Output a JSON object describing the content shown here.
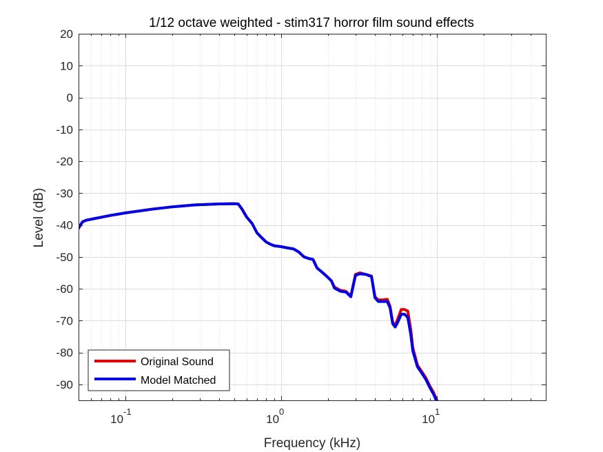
{
  "chart_data": {
    "type": "line",
    "title": "1/12 octave weighted - stim317 horror film sound effects",
    "xlabel": "Frequency (kHz)",
    "ylabel": "Level (dB)",
    "x_scale": "log",
    "xlim": [
      0.05,
      50
    ],
    "ylim": [
      -95,
      20
    ],
    "xticks": [
      {
        "value": 0.1,
        "base": "10",
        "exp": "-1"
      },
      {
        "value": 1,
        "base": "10",
        "exp": "0"
      },
      {
        "value": 10,
        "base": "10",
        "exp": "1"
      }
    ],
    "yticks": [
      20,
      10,
      0,
      -10,
      -20,
      -30,
      -40,
      -50,
      -60,
      -70,
      -80,
      -90
    ],
    "grid": true,
    "minor_grid": true,
    "legend_position": "bottom-left",
    "series": [
      {
        "name": "Original Sound",
        "color": "#e00000",
        "x": [
          0.05,
          0.053,
          0.056,
          0.06,
          0.08,
          0.1,
          0.15,
          0.2,
          0.28,
          0.4,
          0.5,
          0.53,
          0.56,
          0.6,
          0.65,
          0.7,
          0.75,
          0.8,
          0.85,
          0.9,
          1.0,
          1.1,
          1.2,
          1.3,
          1.4,
          1.5,
          1.6,
          1.7,
          1.8,
          1.9,
          2.0,
          2.1,
          2.2,
          2.4,
          2.6,
          2.8,
          3.0,
          3.2,
          3.5,
          3.8,
          4.0,
          4.2,
          4.5,
          4.8,
          5.0,
          5.2,
          5.4,
          5.6,
          5.9,
          6.2,
          6.5,
          6.8,
          7.0,
          7.5,
          8.0,
          8.5,
          9.0,
          9.5,
          10.0,
          10.5
        ],
        "y": [
          -41,
          -39,
          -38.5,
          -38.2,
          -37,
          -36.2,
          -35,
          -34.3,
          -33.7,
          -33.4,
          -33.3,
          -33.4,
          -35,
          -37.5,
          -39.5,
          -42.5,
          -44,
          -45.3,
          -46,
          -46.5,
          -46.8,
          -47.2,
          -47.5,
          -48.5,
          -50,
          -50.5,
          -50.8,
          -53.5,
          -54.5,
          -55.5,
          -56.5,
          -57.5,
          -59.5,
          -60.5,
          -60.8,
          -62.3,
          -55.5,
          -55,
          -55.5,
          -56,
          -62.5,
          -63.5,
          -63.5,
          -63.3,
          -65.5,
          -70.5,
          -71.5,
          -69.5,
          -66.5,
          -66.5,
          -67,
          -73,
          -78.5,
          -84,
          -86,
          -88,
          -90.5,
          -92.5,
          -95,
          -97
        ]
      },
      {
        "name": "Model Matched",
        "color": "#0000e6",
        "x": [
          0.05,
          0.053,
          0.056,
          0.06,
          0.08,
          0.1,
          0.15,
          0.2,
          0.28,
          0.4,
          0.5,
          0.53,
          0.56,
          0.6,
          0.65,
          0.7,
          0.75,
          0.8,
          0.85,
          0.9,
          1.0,
          1.1,
          1.2,
          1.3,
          1.4,
          1.5,
          1.6,
          1.7,
          1.8,
          1.9,
          2.0,
          2.1,
          2.2,
          2.4,
          2.6,
          2.8,
          3.0,
          3.2,
          3.5,
          3.8,
          4.0,
          4.2,
          4.5,
          4.8,
          5.0,
          5.2,
          5.4,
          5.6,
          5.9,
          6.2,
          6.5,
          6.8,
          7.0,
          7.5,
          8.0,
          8.5,
          9.0,
          9.5,
          10.0,
          10.5
        ],
        "y": [
          -41,
          -39,
          -38.5,
          -38.2,
          -37,
          -36.2,
          -35,
          -34.3,
          -33.7,
          -33.4,
          -33.3,
          -33.4,
          -35,
          -37.5,
          -39.5,
          -42.5,
          -44,
          -45.3,
          -46,
          -46.5,
          -46.8,
          -47.2,
          -47.5,
          -48.5,
          -50,
          -50.5,
          -50.8,
          -53.5,
          -54.5,
          -55.5,
          -56.5,
          -57.5,
          -59.8,
          -60.8,
          -61,
          -62.5,
          -55.8,
          -55.3,
          -55.5,
          -56.2,
          -62.8,
          -64,
          -64,
          -64,
          -66,
          -71,
          -72,
          -70.5,
          -68,
          -68,
          -69,
          -74.5,
          -79.5,
          -84.5,
          -86.5,
          -88.5,
          -91,
          -93,
          -95.5,
          -97
        ]
      }
    ]
  }
}
